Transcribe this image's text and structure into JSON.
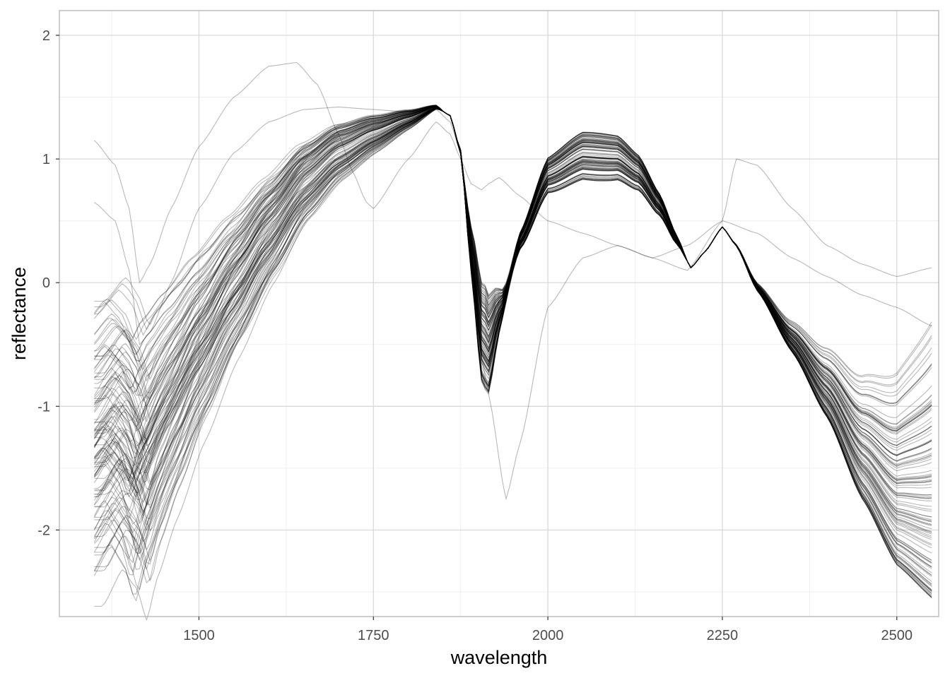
{
  "chart_data": {
    "type": "line",
    "title": "",
    "xlabel": "wavelength",
    "ylabel": "reflectance",
    "xlim": [
      1300,
      2560
    ],
    "ylim": [
      -2.7,
      2.2
    ],
    "x_ticks": [
      1500,
      1750,
      2000,
      2250,
      2500
    ],
    "x_tick_labels": [
      "1500",
      "1750",
      "2000",
      "2250",
      "2500"
    ],
    "x_minor": [
      1375,
      1625,
      1875,
      2125,
      2375
    ],
    "y_ticks": [
      -2,
      -1,
      0,
      1,
      2
    ],
    "y_tick_labels": [
      "-2",
      "-1",
      "0",
      "1",
      "2"
    ],
    "y_minor": [
      -2.5,
      -1.5,
      -0.5,
      0.5,
      1.5
    ],
    "grid": true,
    "legend": "none",
    "line_color": "#000000",
    "line_opacity": 0.28,
    "x_range_of_spectra": [
      1350,
      2550
    ],
    "series_count": 120,
    "series_template": {
      "x": [
        1350,
        1380,
        1400,
        1415,
        1430,
        1460,
        1500,
        1550,
        1600,
        1650,
        1700,
        1750,
        1800,
        1840,
        1860,
        1875,
        1890,
        1905,
        1915,
        1930,
        1960,
        2000,
        2050,
        2100,
        2130,
        2160,
        2185,
        2205,
        2225,
        2250,
        2270,
        2300,
        2350,
        2400,
        2450,
        2500,
        2550
      ],
      "y": [
        -1.45,
        -1.2,
        -1.35,
        -1.6,
        -1.35,
        -1.0,
        -0.55,
        -0.05,
        0.4,
        0.8,
        1.05,
        1.2,
        1.32,
        1.42,
        1.35,
        1.05,
        0.2,
        -0.55,
        -0.65,
        -0.3,
        0.35,
        0.9,
        1.07,
        1.05,
        0.92,
        0.65,
        0.35,
        0.12,
        0.25,
        0.45,
        0.3,
        -0.05,
        -0.5,
        -0.95,
        -1.5,
        -1.9,
        -2.0
      ]
    },
    "series_variation": {
      "offset_range": [
        -0.55,
        0.55
      ],
      "lowband_scale_range": [
        0.75,
        1.25
      ],
      "water_dip_depth_range": [
        0.35,
        1.3
      ],
      "mid_peak_scale_range": [
        0.6,
        1.25
      ],
      "tail_range": [
        -0.55,
        1.7
      ]
    },
    "outlier_series": [
      {
        "x": [
          1350,
          1380,
          1400,
          1415,
          1430,
          1460,
          1500,
          1550,
          1600,
          1640,
          1670,
          1700,
          1720,
          1740,
          1750,
          1800,
          1840,
          1860,
          1875,
          1890,
          1905,
          1915,
          1930,
          1960,
          2000,
          2050,
          2100,
          2150,
          2200,
          2250,
          2300,
          2350,
          2400,
          2450,
          2500,
          2550
        ],
        "y": [
          1.15,
          0.95,
          0.6,
          0.0,
          0.15,
          0.6,
          1.1,
          1.5,
          1.75,
          1.78,
          1.6,
          1.2,
          0.9,
          0.65,
          0.6,
          1.0,
          1.3,
          1.2,
          1.0,
          0.8,
          0.75,
          0.8,
          0.85,
          0.7,
          0.5,
          0.4,
          0.3,
          0.2,
          0.3,
          0.5,
          0.4,
          0.2,
          0.05,
          -0.1,
          -0.2,
          -0.35
        ]
      },
      {
        "x": [
          1350,
          1380,
          1400,
          1415,
          1430,
          1460,
          1500,
          1550,
          1600,
          1650,
          1700,
          1750,
          1800,
          1840,
          1860,
          1875,
          1890,
          1905,
          1915,
          1940,
          1960,
          2000,
          2050,
          2100,
          2150,
          2200,
          2250,
          2270,
          2300,
          2350,
          2400,
          2450,
          2500,
          2550
        ],
        "y": [
          0.65,
          0.5,
          0.1,
          -0.5,
          -0.4,
          0.0,
          0.6,
          1.05,
          1.3,
          1.4,
          1.42,
          1.4,
          1.38,
          1.4,
          1.3,
          1.05,
          0.2,
          -0.6,
          -0.9,
          -1.75,
          -1.3,
          -0.2,
          0.2,
          0.3,
          0.2,
          0.1,
          0.5,
          1.0,
          0.95,
          0.6,
          0.3,
          0.15,
          0.05,
          0.12
        ]
      }
    ]
  }
}
